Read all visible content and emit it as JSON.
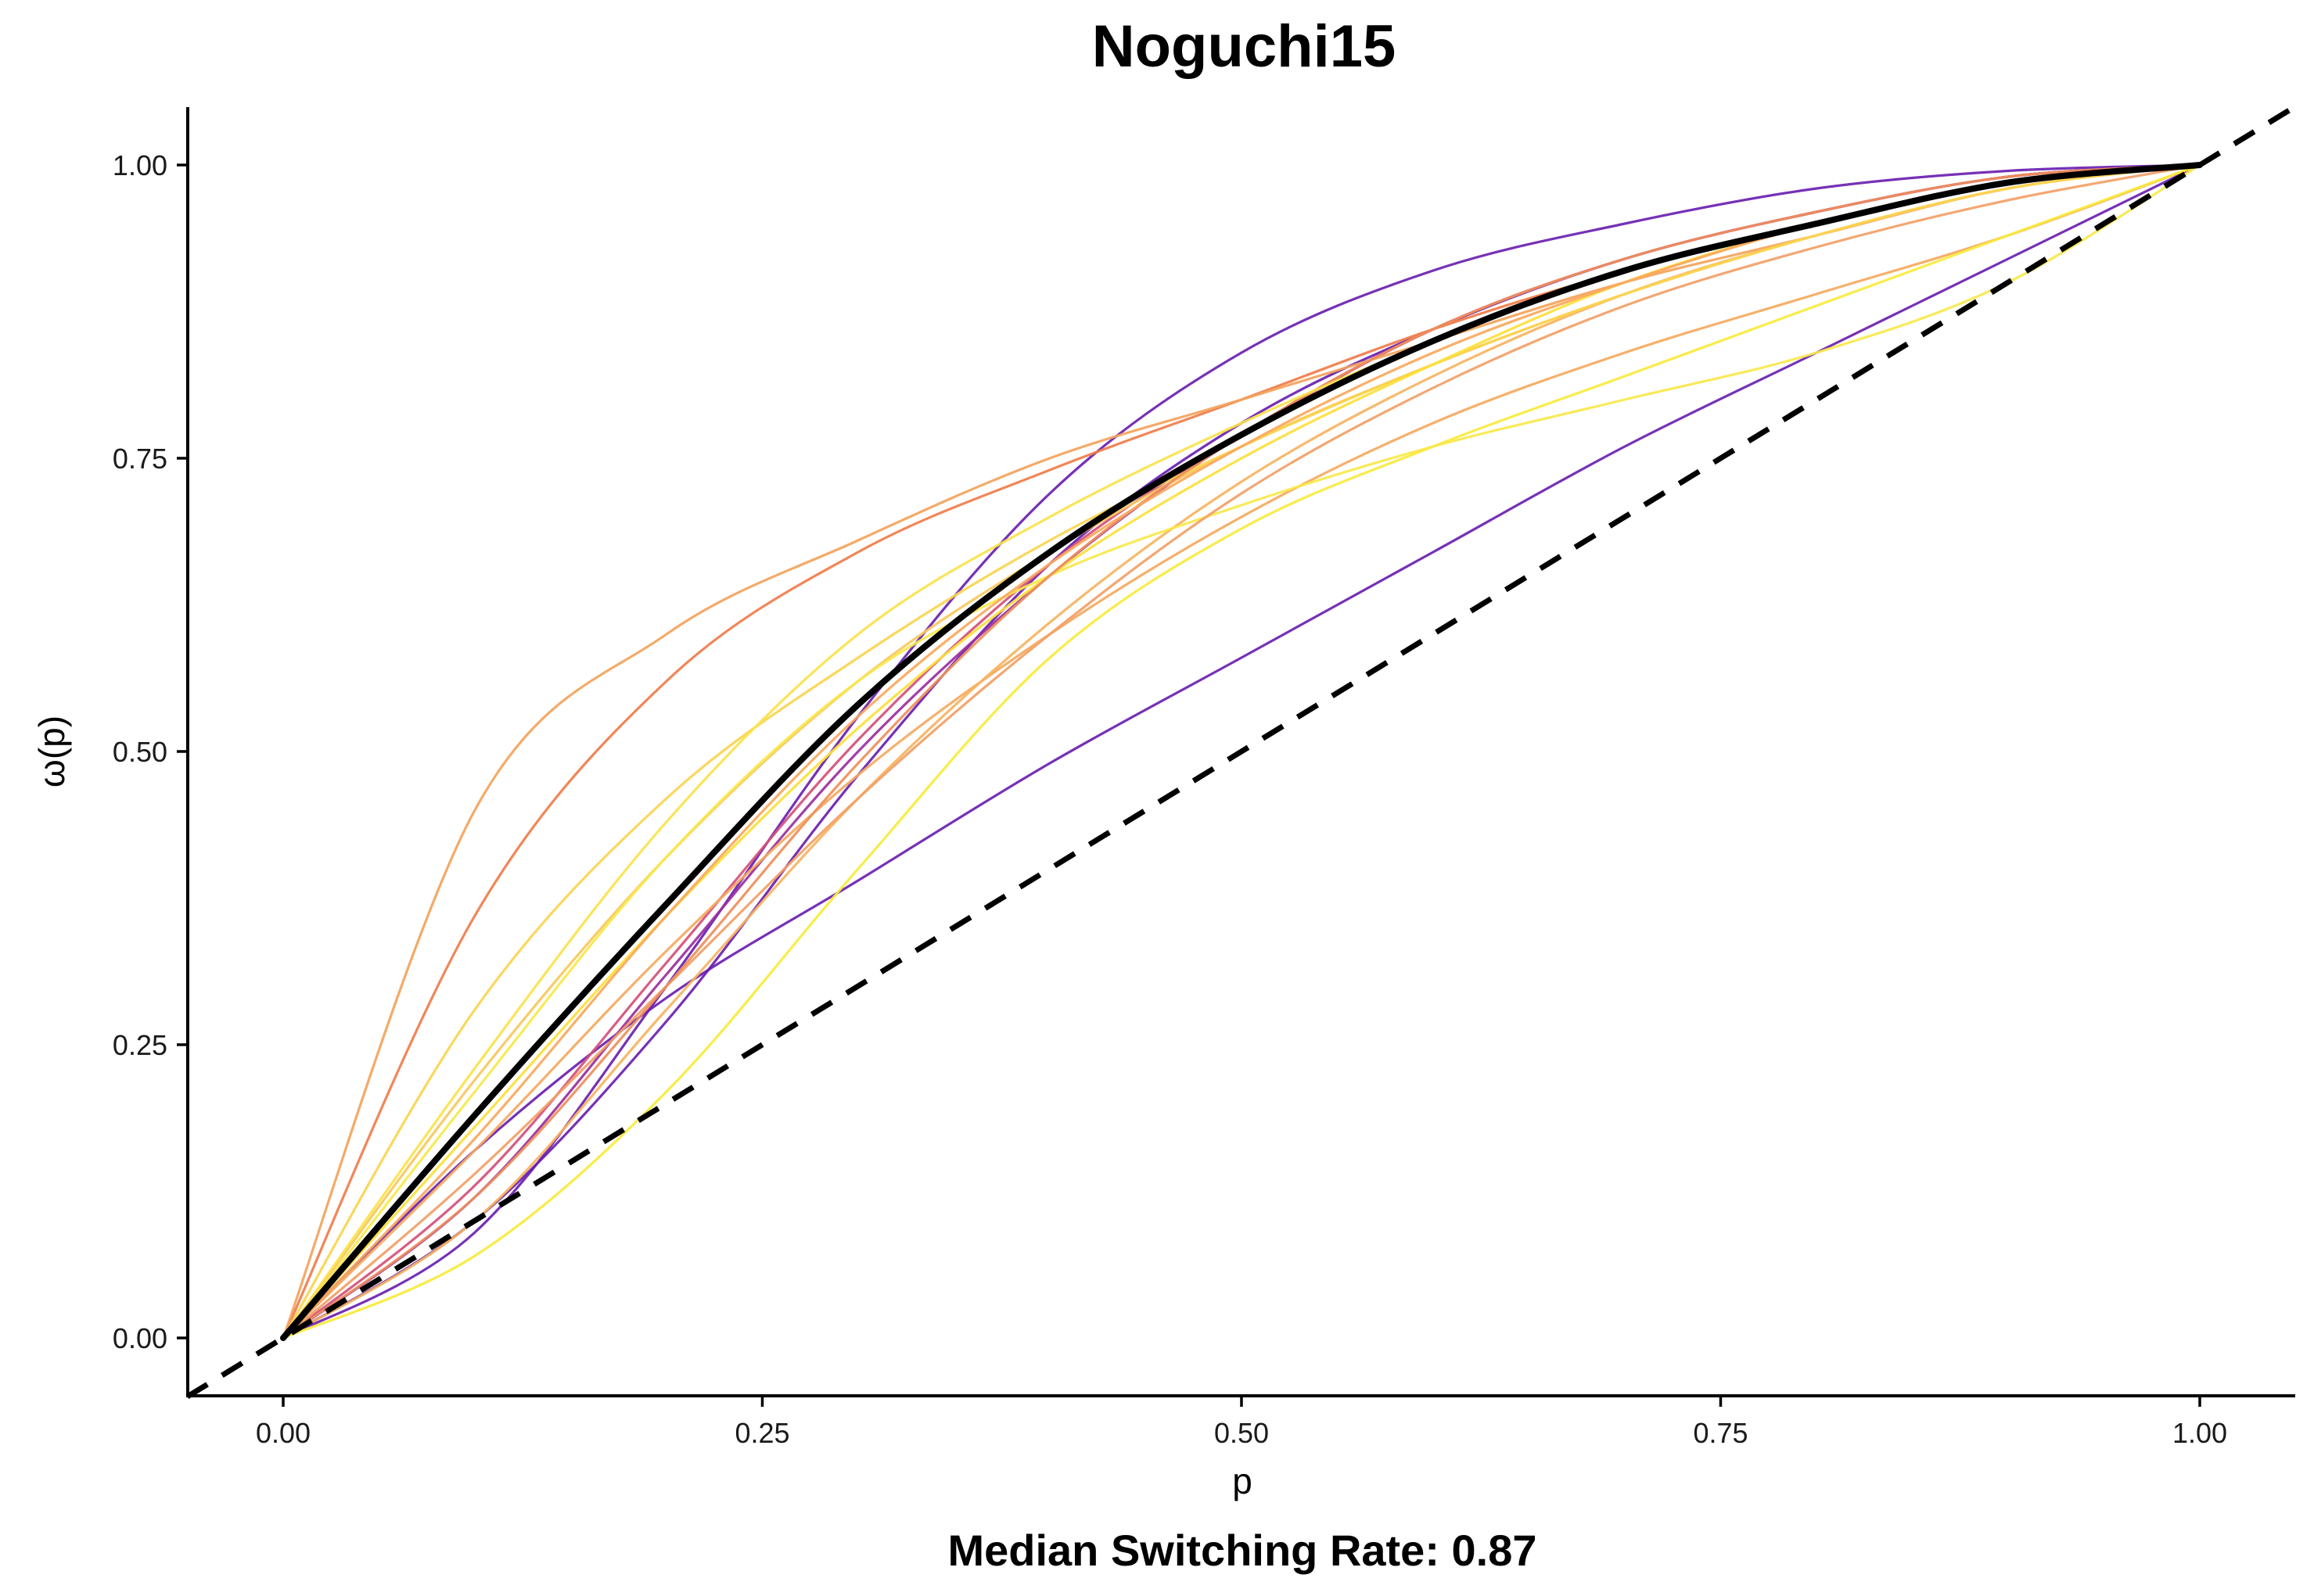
{
  "chart_data": {
    "type": "line",
    "title": "Noguchi15",
    "xlabel": "p",
    "ylabel": "ω(p)",
    "caption": "Median Switching Rate: 0.87",
    "xlim": [
      -0.05,
      1.05
    ],
    "ylim": [
      -0.05,
      1.05
    ],
    "x_ticks": [
      "0.00",
      "0.25",
      "0.50",
      "0.75",
      "1.00"
    ],
    "y_ticks": [
      "0.00",
      "0.25",
      "0.50",
      "0.75",
      "1.00"
    ],
    "grid": false,
    "legend": "none",
    "reference_line": {
      "style": "dashed",
      "color": "#000000",
      "slope": 1,
      "intercept": 0
    },
    "median_curve": {
      "color": "#000000",
      "x": [
        0,
        0.1,
        0.2,
        0.3,
        0.4,
        0.5,
        0.6,
        0.7,
        0.8,
        0.9,
        1.0
      ],
      "y": [
        0,
        0.19,
        0.37,
        0.54,
        0.67,
        0.77,
        0.85,
        0.91,
        0.95,
        0.985,
        1.0
      ]
    },
    "series": [
      {
        "color": "#6a1fb0",
        "x": [
          0,
          0.1,
          0.2,
          0.3,
          0.4,
          0.5,
          0.6,
          0.7,
          0.8,
          0.9,
          1.0
        ],
        "y": [
          0,
          0.09,
          0.3,
          0.53,
          0.72,
          0.84,
          0.91,
          0.95,
          0.98,
          0.995,
          1.0
        ]
      },
      {
        "color": "#6a1fb0",
        "x": [
          0,
          0.1,
          0.2,
          0.3,
          0.4,
          0.5,
          0.6,
          0.7,
          0.8,
          0.9,
          1.0
        ],
        "y": [
          0,
          0.16,
          0.29,
          0.39,
          0.49,
          0.58,
          0.67,
          0.76,
          0.84,
          0.92,
          1.0
        ]
      },
      {
        "color": "#6a1fb0",
        "x": [
          0,
          0.1,
          0.2,
          0.3,
          0.4,
          0.5,
          0.6,
          0.7,
          0.8,
          0.9,
          1.0
        ],
        "y": [
          0,
          0.1,
          0.27,
          0.48,
          0.66,
          0.78,
          0.86,
          0.92,
          0.96,
          0.99,
          1.0
        ]
      },
      {
        "color": "#9a2f9e",
        "x": [
          0,
          0.1,
          0.2,
          0.3,
          0.4,
          0.5,
          0.6,
          0.7,
          0.8,
          0.9,
          1.0
        ],
        "y": [
          0,
          0.12,
          0.31,
          0.5,
          0.65,
          0.77,
          0.86,
          0.92,
          0.96,
          0.99,
          1.0
        ]
      },
      {
        "color": "#d4507a",
        "x": [
          0,
          0.1,
          0.2,
          0.3,
          0.4,
          0.5,
          0.6,
          0.7,
          0.8,
          0.9,
          1.0
        ],
        "y": [
          0,
          0.13,
          0.32,
          0.51,
          0.66,
          0.77,
          0.86,
          0.92,
          0.96,
          0.99,
          1.0
        ]
      },
      {
        "color": "#f07c4a",
        "x": [
          0,
          0.1,
          0.2,
          0.3,
          0.4,
          0.5,
          0.6,
          0.7,
          0.8,
          0.9,
          1.0
        ],
        "y": [
          0,
          0.36,
          0.56,
          0.67,
          0.74,
          0.8,
          0.86,
          0.91,
          0.95,
          0.985,
          1.0
        ]
      },
      {
        "color": "#f3a35b",
        "x": [
          0,
          0.1,
          0.2,
          0.3,
          0.4,
          0.5,
          0.6,
          0.7,
          0.8,
          0.9,
          1.0
        ],
        "y": [
          0,
          0.45,
          0.6,
          0.68,
          0.75,
          0.8,
          0.85,
          0.9,
          0.94,
          0.98,
          1.0
        ]
      },
      {
        "color": "#f5a95e",
        "x": [
          0,
          0.1,
          0.2,
          0.3,
          0.4,
          0.5,
          0.6,
          0.7,
          0.8,
          0.9,
          1.0
        ],
        "y": [
          0,
          0.16,
          0.33,
          0.48,
          0.6,
          0.7,
          0.78,
          0.84,
          0.89,
          0.94,
          1.0
        ]
      },
      {
        "color": "#f7b35f",
        "x": [
          0,
          0.1,
          0.2,
          0.3,
          0.4,
          0.5,
          0.6,
          0.7,
          0.8,
          0.9,
          1.0
        ],
        "y": [
          0,
          0.1,
          0.28,
          0.46,
          0.61,
          0.73,
          0.82,
          0.89,
          0.94,
          0.98,
          1.0
        ]
      },
      {
        "color": "#f9c85c",
        "x": [
          0,
          0.1,
          0.2,
          0.3,
          0.4,
          0.5,
          0.6,
          0.7,
          0.8,
          0.9,
          1.0
        ],
        "y": [
          0,
          0.22,
          0.41,
          0.56,
          0.67,
          0.76,
          0.83,
          0.89,
          0.94,
          0.98,
          1.0
        ]
      },
      {
        "color": "#fbd44e",
        "x": [
          0,
          0.1,
          0.2,
          0.3,
          0.4,
          0.5,
          0.6,
          0.7,
          0.8,
          0.9,
          1.0
        ],
        "y": [
          0,
          0.28,
          0.46,
          0.58,
          0.68,
          0.76,
          0.83,
          0.89,
          0.94,
          0.98,
          1.0
        ]
      },
      {
        "color": "#fde03a",
        "x": [
          0,
          0.1,
          0.2,
          0.3,
          0.4,
          0.5,
          0.6,
          0.7,
          0.8,
          0.9,
          1.0
        ],
        "y": [
          0,
          0.18,
          0.36,
          0.52,
          0.65,
          0.75,
          0.83,
          0.9,
          0.95,
          0.985,
          1.0
        ]
      },
      {
        "color": "#f8ea3a",
        "x": [
          0,
          0.1,
          0.2,
          0.3,
          0.4,
          0.5,
          0.6,
          0.7,
          0.8,
          0.9,
          1.0
        ],
        "y": [
          0,
          0.07,
          0.21,
          0.4,
          0.58,
          0.69,
          0.76,
          0.82,
          0.88,
          0.94,
          1.0
        ]
      },
      {
        "color": "#f9e84a",
        "x": [
          0,
          0.1,
          0.2,
          0.3,
          0.4,
          0.5,
          0.6,
          0.7,
          0.8,
          0.9,
          1.0
        ],
        "y": [
          0,
          0.21,
          0.41,
          0.56,
          0.65,
          0.71,
          0.76,
          0.8,
          0.84,
          0.9,
          1.0
        ]
      },
      {
        "color": "#f2a066",
        "x": [
          0,
          0.1,
          0.2,
          0.3,
          0.4,
          0.5,
          0.6,
          0.7,
          0.8,
          0.9,
          1.0
        ],
        "y": [
          0,
          0.14,
          0.3,
          0.46,
          0.6,
          0.72,
          0.81,
          0.88,
          0.93,
          0.97,
          1.0
        ]
      },
      {
        "color": "#ee8f5a",
        "x": [
          0,
          0.1,
          0.2,
          0.3,
          0.4,
          0.5,
          0.6,
          0.7,
          0.8,
          0.9,
          1.0
        ],
        "y": [
          0,
          0.12,
          0.3,
          0.49,
          0.65,
          0.77,
          0.86,
          0.92,
          0.96,
          0.99,
          1.0
        ]
      },
      {
        "color": "#fbe24a",
        "x": [
          0,
          0.1,
          0.2,
          0.3,
          0.4,
          0.5,
          0.6,
          0.7,
          0.8,
          0.9,
          1.0
        ],
        "y": [
          0,
          0.23,
          0.44,
          0.6,
          0.7,
          0.78,
          0.85,
          0.91,
          0.95,
          0.985,
          1.0
        ]
      },
      {
        "color": "#faa85c",
        "x": [
          0,
          0.1,
          0.2,
          0.3,
          0.4,
          0.5,
          0.6,
          0.7,
          0.8,
          0.9,
          1.0
        ],
        "y": [
          0,
          0.17,
          0.36,
          0.53,
          0.66,
          0.76,
          0.84,
          0.9,
          0.95,
          0.985,
          1.0
        ]
      }
    ]
  }
}
